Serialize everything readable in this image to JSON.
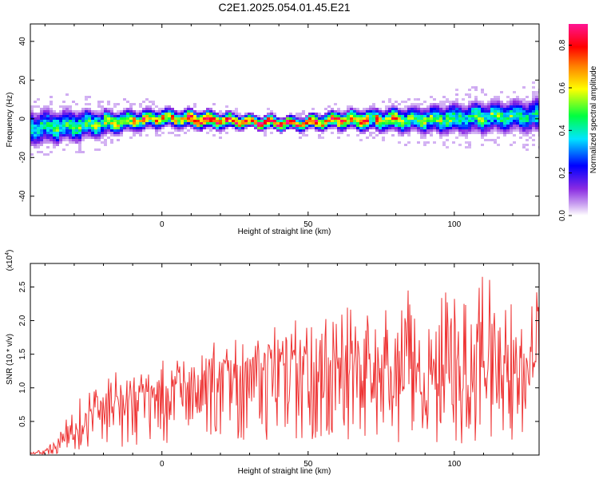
{
  "title": "C2E1.2025.054.01.45.E21",
  "chart_data": [
    {
      "type": "heatmap",
      "xlabel": "Height of straight line (km)",
      "ylabel": "Frequency (Hz)",
      "xlim": [
        -45,
        129
      ],
      "ylim": [
        -50,
        49
      ],
      "xticks": [
        0,
        50,
        100
      ],
      "yticks": [
        -40,
        -20,
        0,
        20,
        40
      ],
      "x_tick_labels": [
        "0",
        "50",
        "100"
      ],
      "y_tick_labels": [
        "-40",
        "-20",
        "0",
        "20",
        "40"
      ],
      "colorbar": {
        "label": "Normalized spectral amplitude",
        "range": [
          0.0,
          0.9
        ],
        "ticks": [
          0.0,
          0.2,
          0.4,
          0.6,
          0.8
        ],
        "tick_labels": [
          "0.0",
          "0.2",
          "0.4",
          "0.6",
          "0.8"
        ],
        "colormap": [
          "#ffffff",
          "#8a2be2",
          "#0000ff",
          "#00ffff",
          "#00ff00",
          "#ffff00",
          "#ff8000",
          "#ff0000",
          "#ff00a0"
        ]
      },
      "ridge": {
        "x": [
          -45,
          -30,
          -15,
          0,
          15,
          30,
          45,
          60,
          75,
          90,
          105,
          120,
          129
        ],
        "center_hz": [
          -4,
          -3,
          -1,
          1,
          0,
          -1,
          -2,
          0,
          0,
          0,
          1,
          2,
          2
        ],
        "halfwidth_hz": [
          8,
          7,
          5,
          4,
          4,
          3,
          3,
          4,
          5,
          6,
          7,
          7,
          8
        ],
        "peak_amplitude": [
          0.45,
          0.5,
          0.65,
          0.8,
          0.9,
          0.9,
          0.85,
          0.85,
          0.7,
          0.55,
          0.5,
          0.45,
          0.45
        ]
      },
      "grid": false
    },
    {
      "type": "line",
      "xlabel": "Height of straight line (km)",
      "ylabel": "SNR (10 * v/v)",
      "y_multiplier_label": "(x10^4)",
      "xlim": [
        -45,
        129
      ],
      "ylim": [
        0,
        2.85
      ],
      "xticks": [
        0,
        50,
        100
      ],
      "yticks": [
        0.5,
        1.0,
        1.5,
        2.0,
        2.5
      ],
      "x_tick_labels": [
        "0",
        "50",
        "100"
      ],
      "y_tick_labels": [
        "0.5",
        "1.0",
        "1.5",
        "2.0",
        "2.5"
      ],
      "color": "#ee3333",
      "series": [
        {
          "x": [
            -45,
            -40,
            -36,
            -33,
            -30,
            -25,
            -20,
            -15,
            -10,
            -5,
            0,
            5,
            10,
            15,
            20,
            25,
            30,
            35,
            40,
            45,
            50,
            55,
            60,
            65,
            70,
            75,
            80,
            85,
            90,
            95,
            100,
            105,
            110,
            115,
            120,
            125,
            129
          ],
          "values": [
            0.02,
            0.06,
            0.12,
            0.3,
            0.42,
            0.55,
            0.65,
            0.75,
            0.85,
            0.92,
            0.98,
            1.02,
            1.05,
            1.1,
            1.15,
            1.2,
            1.25,
            1.28,
            1.3,
            1.32,
            1.35,
            1.3,
            1.28,
            1.3,
            1.3,
            1.25,
            1.2,
            1.2,
            1.15,
            1.2,
            1.1,
            1.15,
            1.1,
            1.05,
            1.05,
            1.0,
            1.0
          ],
          "peak_values": [
            0.03,
            0.1,
            0.25,
            0.6,
            1.25,
            0.95,
            1.2,
            1.3,
            1.3,
            1.4,
            1.45,
            1.4,
            1.6,
            1.7,
            1.8,
            1.95,
            1.85,
            1.9,
            1.95,
            2.0,
            2.05,
            2.1,
            2.1,
            2.25,
            2.3,
            2.2,
            2.8,
            2.55,
            2.3,
            2.4,
            2.75,
            2.5,
            2.8,
            2.5,
            2.6,
            2.5,
            2.4
          ]
        }
      ],
      "grid": false
    }
  ]
}
